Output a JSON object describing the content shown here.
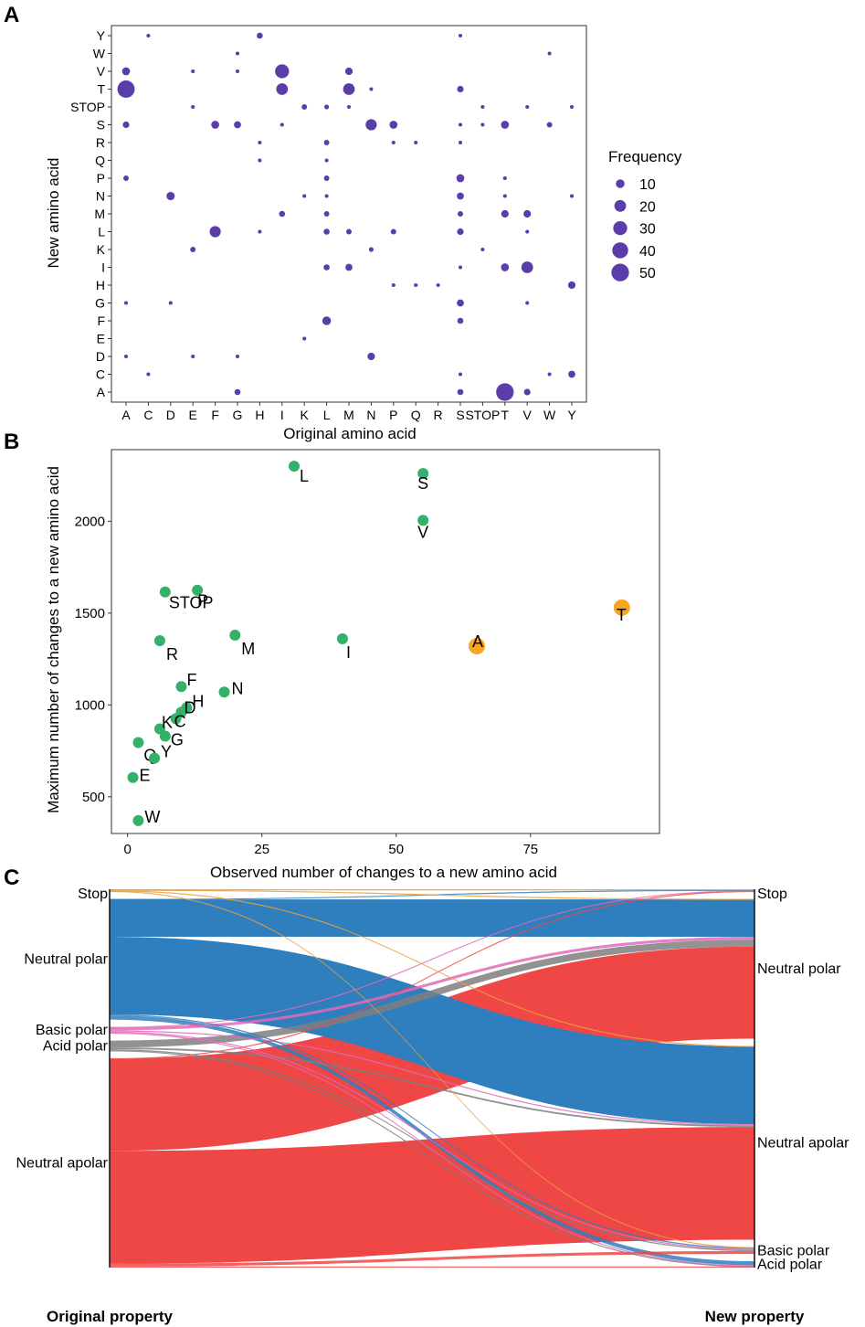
{
  "colors": {
    "bubble": "#5B3DAA",
    "green": "#33B06A",
    "orange": "#F5A623",
    "neutral_polar": "#2F7FBE",
    "neutral_apolar": "#EF4646",
    "basic_polar": "#E06AB8",
    "acid_polar": "#7F7F7F",
    "stop": "#E8A03A"
  },
  "panel_labels": {
    "a": "A",
    "b": "B",
    "c": "C"
  },
  "chart_data": [
    {
      "panel": "A",
      "type": "scatter",
      "subtype": "bubble",
      "xlabel": "Original amino acid",
      "ylabel": "New amino acid",
      "x_categories": [
        "A",
        "C",
        "D",
        "E",
        "F",
        "G",
        "H",
        "I",
        "K",
        "L",
        "M",
        "N",
        "P",
        "Q",
        "R",
        "S",
        "STOP",
        "T",
        "V",
        "W",
        "Y"
      ],
      "y_categories": [
        "A",
        "C",
        "D",
        "E",
        "F",
        "G",
        "H",
        "I",
        "K",
        "L",
        "M",
        "N",
        "P",
        "Q",
        "R",
        "S",
        "STOP",
        "T",
        "V",
        "W",
        "Y"
      ],
      "size_legend": {
        "title": "Frequency",
        "values": [
          10,
          20,
          30,
          40,
          50
        ]
      },
      "points": [
        {
          "x": "C",
          "y": "Y",
          "n": 1
        },
        {
          "x": "H",
          "y": "Y",
          "n": 4
        },
        {
          "x": "S",
          "y": "Y",
          "n": 1
        },
        {
          "x": "G",
          "y": "W",
          "n": 1
        },
        {
          "x": "W",
          "y": "W",
          "n": 1
        },
        {
          "x": "A",
          "y": "V",
          "n": 8
        },
        {
          "x": "E",
          "y": "V",
          "n": 1
        },
        {
          "x": "G",
          "y": "V",
          "n": 1
        },
        {
          "x": "I",
          "y": "V",
          "n": 30
        },
        {
          "x": "M",
          "y": "V",
          "n": 7
        },
        {
          "x": "A",
          "y": "T",
          "n": 48
        },
        {
          "x": "I",
          "y": "T",
          "n": 20
        },
        {
          "x": "M",
          "y": "T",
          "n": 20
        },
        {
          "x": "N",
          "y": "T",
          "n": 1
        },
        {
          "x": "S",
          "y": "T",
          "n": 5
        },
        {
          "x": "E",
          "y": "STOP",
          "n": 1
        },
        {
          "x": "K",
          "y": "STOP",
          "n": 3
        },
        {
          "x": "L",
          "y": "STOP",
          "n": 2
        },
        {
          "x": "M",
          "y": "STOP",
          "n": 1
        },
        {
          "x": "STOP",
          "y": "STOP",
          "n": 1
        },
        {
          "x": "V",
          "y": "STOP",
          "n": 1
        },
        {
          "x": "Y",
          "y": "STOP",
          "n": 1
        },
        {
          "x": "A",
          "y": "S",
          "n": 5
        },
        {
          "x": "F",
          "y": "S",
          "n": 8
        },
        {
          "x": "G",
          "y": "S",
          "n": 6
        },
        {
          "x": "I",
          "y": "S",
          "n": 1
        },
        {
          "x": "N",
          "y": "S",
          "n": 18
        },
        {
          "x": "P",
          "y": "S",
          "n": 8
        },
        {
          "x": "S",
          "y": "S",
          "n": 1
        },
        {
          "x": "STOP",
          "y": "S",
          "n": 1
        },
        {
          "x": "T",
          "y": "S",
          "n": 8
        },
        {
          "x": "W",
          "y": "S",
          "n": 3
        },
        {
          "x": "H",
          "y": "R",
          "n": 1
        },
        {
          "x": "L",
          "y": "R",
          "n": 3
        },
        {
          "x": "P",
          "y": "R",
          "n": 1
        },
        {
          "x": "Q",
          "y": "R",
          "n": 1
        },
        {
          "x": "S",
          "y": "R",
          "n": 1
        },
        {
          "x": "H",
          "y": "Q",
          "n": 1
        },
        {
          "x": "L",
          "y": "Q",
          "n": 1
        },
        {
          "x": "A",
          "y": "P",
          "n": 3
        },
        {
          "x": "L",
          "y": "P",
          "n": 3
        },
        {
          "x": "S",
          "y": "P",
          "n": 8
        },
        {
          "x": "T",
          "y": "P",
          "n": 1
        },
        {
          "x": "D",
          "y": "N",
          "n": 9
        },
        {
          "x": "K",
          "y": "N",
          "n": 1
        },
        {
          "x": "L",
          "y": "N",
          "n": 1
        },
        {
          "x": "S",
          "y": "N",
          "n": 6
        },
        {
          "x": "T",
          "y": "N",
          "n": 1
        },
        {
          "x": "Y",
          "y": "N",
          "n": 1
        },
        {
          "x": "I",
          "y": "M",
          "n": 4
        },
        {
          "x": "L",
          "y": "M",
          "n": 3
        },
        {
          "x": "S",
          "y": "M",
          "n": 3
        },
        {
          "x": "T",
          "y": "M",
          "n": 7
        },
        {
          "x": "V",
          "y": "M",
          "n": 7
        },
        {
          "x": "F",
          "y": "L",
          "n": 18
        },
        {
          "x": "H",
          "y": "L",
          "n": 1
        },
        {
          "x": "L",
          "y": "L",
          "n": 4
        },
        {
          "x": "M",
          "y": "L",
          "n": 3
        },
        {
          "x": "P",
          "y": "L",
          "n": 3
        },
        {
          "x": "S",
          "y": "L",
          "n": 5
        },
        {
          "x": "V",
          "y": "L",
          "n": 1
        },
        {
          "x": "E",
          "y": "K",
          "n": 3
        },
        {
          "x": "N",
          "y": "K",
          "n": 2
        },
        {
          "x": "STOP",
          "y": "K",
          "n": 1
        },
        {
          "x": "L",
          "y": "I",
          "n": 4
        },
        {
          "x": "M",
          "y": "I",
          "n": 6
        },
        {
          "x": "S",
          "y": "I",
          "n": 1
        },
        {
          "x": "T",
          "y": "I",
          "n": 8
        },
        {
          "x": "V",
          "y": "I",
          "n": 20
        },
        {
          "x": "P",
          "y": "H",
          "n": 1
        },
        {
          "x": "Q",
          "y": "H",
          "n": 1
        },
        {
          "x": "R",
          "y": "H",
          "n": 1
        },
        {
          "x": "Y",
          "y": "H",
          "n": 7
        },
        {
          "x": "A",
          "y": "G",
          "n": 1
        },
        {
          "x": "D",
          "y": "G",
          "n": 1
        },
        {
          "x": "S",
          "y": "G",
          "n": 6
        },
        {
          "x": "V",
          "y": "G",
          "n": 1
        },
        {
          "x": "L",
          "y": "F",
          "n": 10
        },
        {
          "x": "S",
          "y": "F",
          "n": 4
        },
        {
          "x": "K",
          "y": "E",
          "n": 1
        },
        {
          "x": "A",
          "y": "D",
          "n": 1
        },
        {
          "x": "E",
          "y": "D",
          "n": 1
        },
        {
          "x": "G",
          "y": "D",
          "n": 1
        },
        {
          "x": "N",
          "y": "D",
          "n": 7
        },
        {
          "x": "C",
          "y": "C",
          "n": 1
        },
        {
          "x": "S",
          "y": "C",
          "n": 1
        },
        {
          "x": "W",
          "y": "C",
          "n": 1
        },
        {
          "x": "Y",
          "y": "C",
          "n": 6
        },
        {
          "x": "G",
          "y": "A",
          "n": 4
        },
        {
          "x": "S",
          "y": "A",
          "n": 4
        },
        {
          "x": "T",
          "y": "A",
          "n": 50
        },
        {
          "x": "V",
          "y": "A",
          "n": 5
        }
      ]
    },
    {
      "panel": "B",
      "type": "scatter",
      "xlabel": "Observed number of changes to a new amino acid",
      "ylabel": "Maximum number of changes to a new amino acid",
      "xlim": [
        -3,
        99
      ],
      "ylim": [
        300,
        2390
      ],
      "xticks": [
        0,
        25,
        50,
        75
      ],
      "yticks": [
        500,
        1000,
        1500,
        2000
      ],
      "points": [
        {
          "label": "L",
          "x": 31,
          "y": 2300,
          "group": "green"
        },
        {
          "label": "S",
          "x": 55,
          "y": 2260,
          "group": "green"
        },
        {
          "label": "V",
          "x": 55,
          "y": 2005,
          "group": "green"
        },
        {
          "label": "STOP",
          "x": 7,
          "y": 1615,
          "group": "green"
        },
        {
          "label": "P",
          "x": 13,
          "y": 1625,
          "group": "green"
        },
        {
          "label": "T",
          "x": 92,
          "y": 1530,
          "group": "orange"
        },
        {
          "label": "R",
          "x": 6,
          "y": 1350,
          "group": "green"
        },
        {
          "label": "M",
          "x": 20,
          "y": 1380,
          "group": "green"
        },
        {
          "label": "I",
          "x": 40,
          "y": 1360,
          "group": "green"
        },
        {
          "label": "A",
          "x": 65,
          "y": 1320,
          "group": "orange"
        },
        {
          "label": "F",
          "x": 10,
          "y": 1100,
          "group": "green"
        },
        {
          "label": "N",
          "x": 18,
          "y": 1070,
          "group": "green"
        },
        {
          "label": "H",
          "x": 11,
          "y": 985,
          "group": "green"
        },
        {
          "label": "D",
          "x": 10,
          "y": 960,
          "group": "green"
        },
        {
          "label": "C",
          "x": 9,
          "y": 925,
          "group": "green"
        },
        {
          "label": "K",
          "x": 6,
          "y": 870,
          "group": "green"
        },
        {
          "label": "G",
          "x": 7,
          "y": 830,
          "group": "green"
        },
        {
          "label": "Q",
          "x": 2,
          "y": 795,
          "group": "green"
        },
        {
          "label": "Y",
          "x": 5,
          "y": 710,
          "group": "green"
        },
        {
          "label": "E",
          "x": 1,
          "y": 605,
          "group": "green"
        },
        {
          "label": "W",
          "x": 2,
          "y": 370,
          "group": "green"
        }
      ]
    },
    {
      "panel": "C",
      "type": "sankey",
      "left_title": "Original property",
      "right_title": "New property",
      "left_nodes": [
        "Stop",
        "Neutral polar",
        "Basic polar",
        "Acid polar",
        "Neutral apolar"
      ],
      "right_nodes": [
        "Stop",
        "Neutral polar",
        "Neutral apolar",
        "Basic polar",
        "Acid polar"
      ],
      "flows": [
        {
          "from": "Stop",
          "to": "Stop",
          "value": 1
        },
        {
          "from": "Stop",
          "to": "Neutral polar",
          "value": 1
        },
        {
          "from": "Stop",
          "to": "Neutral apolar",
          "value": 1
        },
        {
          "from": "Stop",
          "to": "Basic polar",
          "value": 1
        },
        {
          "from": "Neutral polar",
          "to": "Stop",
          "value": 1
        },
        {
          "from": "Neutral polar",
          "to": "Neutral polar",
          "value": 65
        },
        {
          "from": "Neutral polar",
          "to": "Neutral apolar",
          "value": 135
        },
        {
          "from": "Neutral polar",
          "to": "Basic polar",
          "value": 2
        },
        {
          "from": "Neutral polar",
          "to": "Acid polar",
          "value": 7
        },
        {
          "from": "Basic polar",
          "to": "Stop",
          "value": 1
        },
        {
          "from": "Basic polar",
          "to": "Neutral polar",
          "value": 5
        },
        {
          "from": "Basic polar",
          "to": "Neutral apolar",
          "value": 2
        },
        {
          "from": "Basic polar",
          "to": "Basic polar",
          "value": 2
        },
        {
          "from": "Basic polar",
          "to": "Acid polar",
          "value": 1
        },
        {
          "from": "Acid polar",
          "to": "Neutral polar",
          "value": 12
        },
        {
          "from": "Acid polar",
          "to": "Neutral apolar",
          "value": 3
        },
        {
          "from": "Acid polar",
          "to": "Basic polar",
          "value": 2
        },
        {
          "from": "Acid polar",
          "to": "Acid polar",
          "value": 1
        },
        {
          "from": "Neutral apolar",
          "to": "Stop",
          "value": 1
        },
        {
          "from": "Neutral apolar",
          "to": "Neutral polar",
          "value": 160
        },
        {
          "from": "Neutral apolar",
          "to": "Neutral apolar",
          "value": 196
        },
        {
          "from": "Neutral apolar",
          "to": "Basic polar",
          "value": 5
        },
        {
          "from": "Neutral apolar",
          "to": "Acid polar",
          "value": 2
        }
      ]
    }
  ]
}
